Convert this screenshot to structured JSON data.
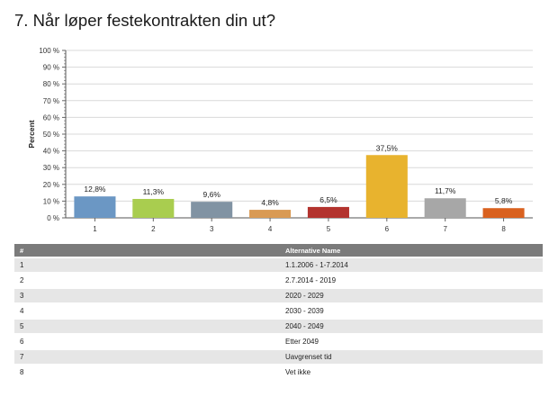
{
  "page": {
    "title": "7. Når løper festekontrakten din ut?"
  },
  "chart_data": {
    "type": "bar",
    "categories": [
      "1",
      "2",
      "3",
      "4",
      "5",
      "6",
      "7",
      "8"
    ],
    "values": [
      12.8,
      11.3,
      9.6,
      4.8,
      6.5,
      37.5,
      11.7,
      5.8
    ],
    "value_labels": [
      "12,8%",
      "11,3%",
      "9,6%",
      "4,8%",
      "6,5%",
      "37,5%",
      "11,7%",
      "5,8%"
    ],
    "colors": [
      "#6b97c4",
      "#a9cd4f",
      "#8193a3",
      "#d99a54",
      "#b3332e",
      "#e8b32e",
      "#a7a7a7",
      "#d9611f"
    ],
    "ylabel": "Percent",
    "ylim": [
      0,
      100
    ],
    "yticks": [
      0,
      10,
      20,
      30,
      40,
      50,
      60,
      70,
      80,
      90,
      100
    ],
    "ytick_labels": [
      "0 %",
      "10 %",
      "20 %",
      "30 %",
      "40 %",
      "50 %",
      "60 %",
      "70 %",
      "80 %",
      "90 %",
      "100 %"
    ],
    "grid": true,
    "legend": "none"
  },
  "table": {
    "headers": [
      "#",
      "Alternative Name"
    ],
    "rows": [
      [
        "1",
        "1.1.2006 - 1-7.2014"
      ],
      [
        "2",
        "2.7.2014 - 2019"
      ],
      [
        "3",
        "2020 - 2029"
      ],
      [
        "4",
        "2030 - 2039"
      ],
      [
        "5",
        "2040 - 2049"
      ],
      [
        "6",
        "Etter 2049"
      ],
      [
        "7",
        "Uavgrenset tid"
      ],
      [
        "8",
        "Vet ikke"
      ]
    ]
  }
}
